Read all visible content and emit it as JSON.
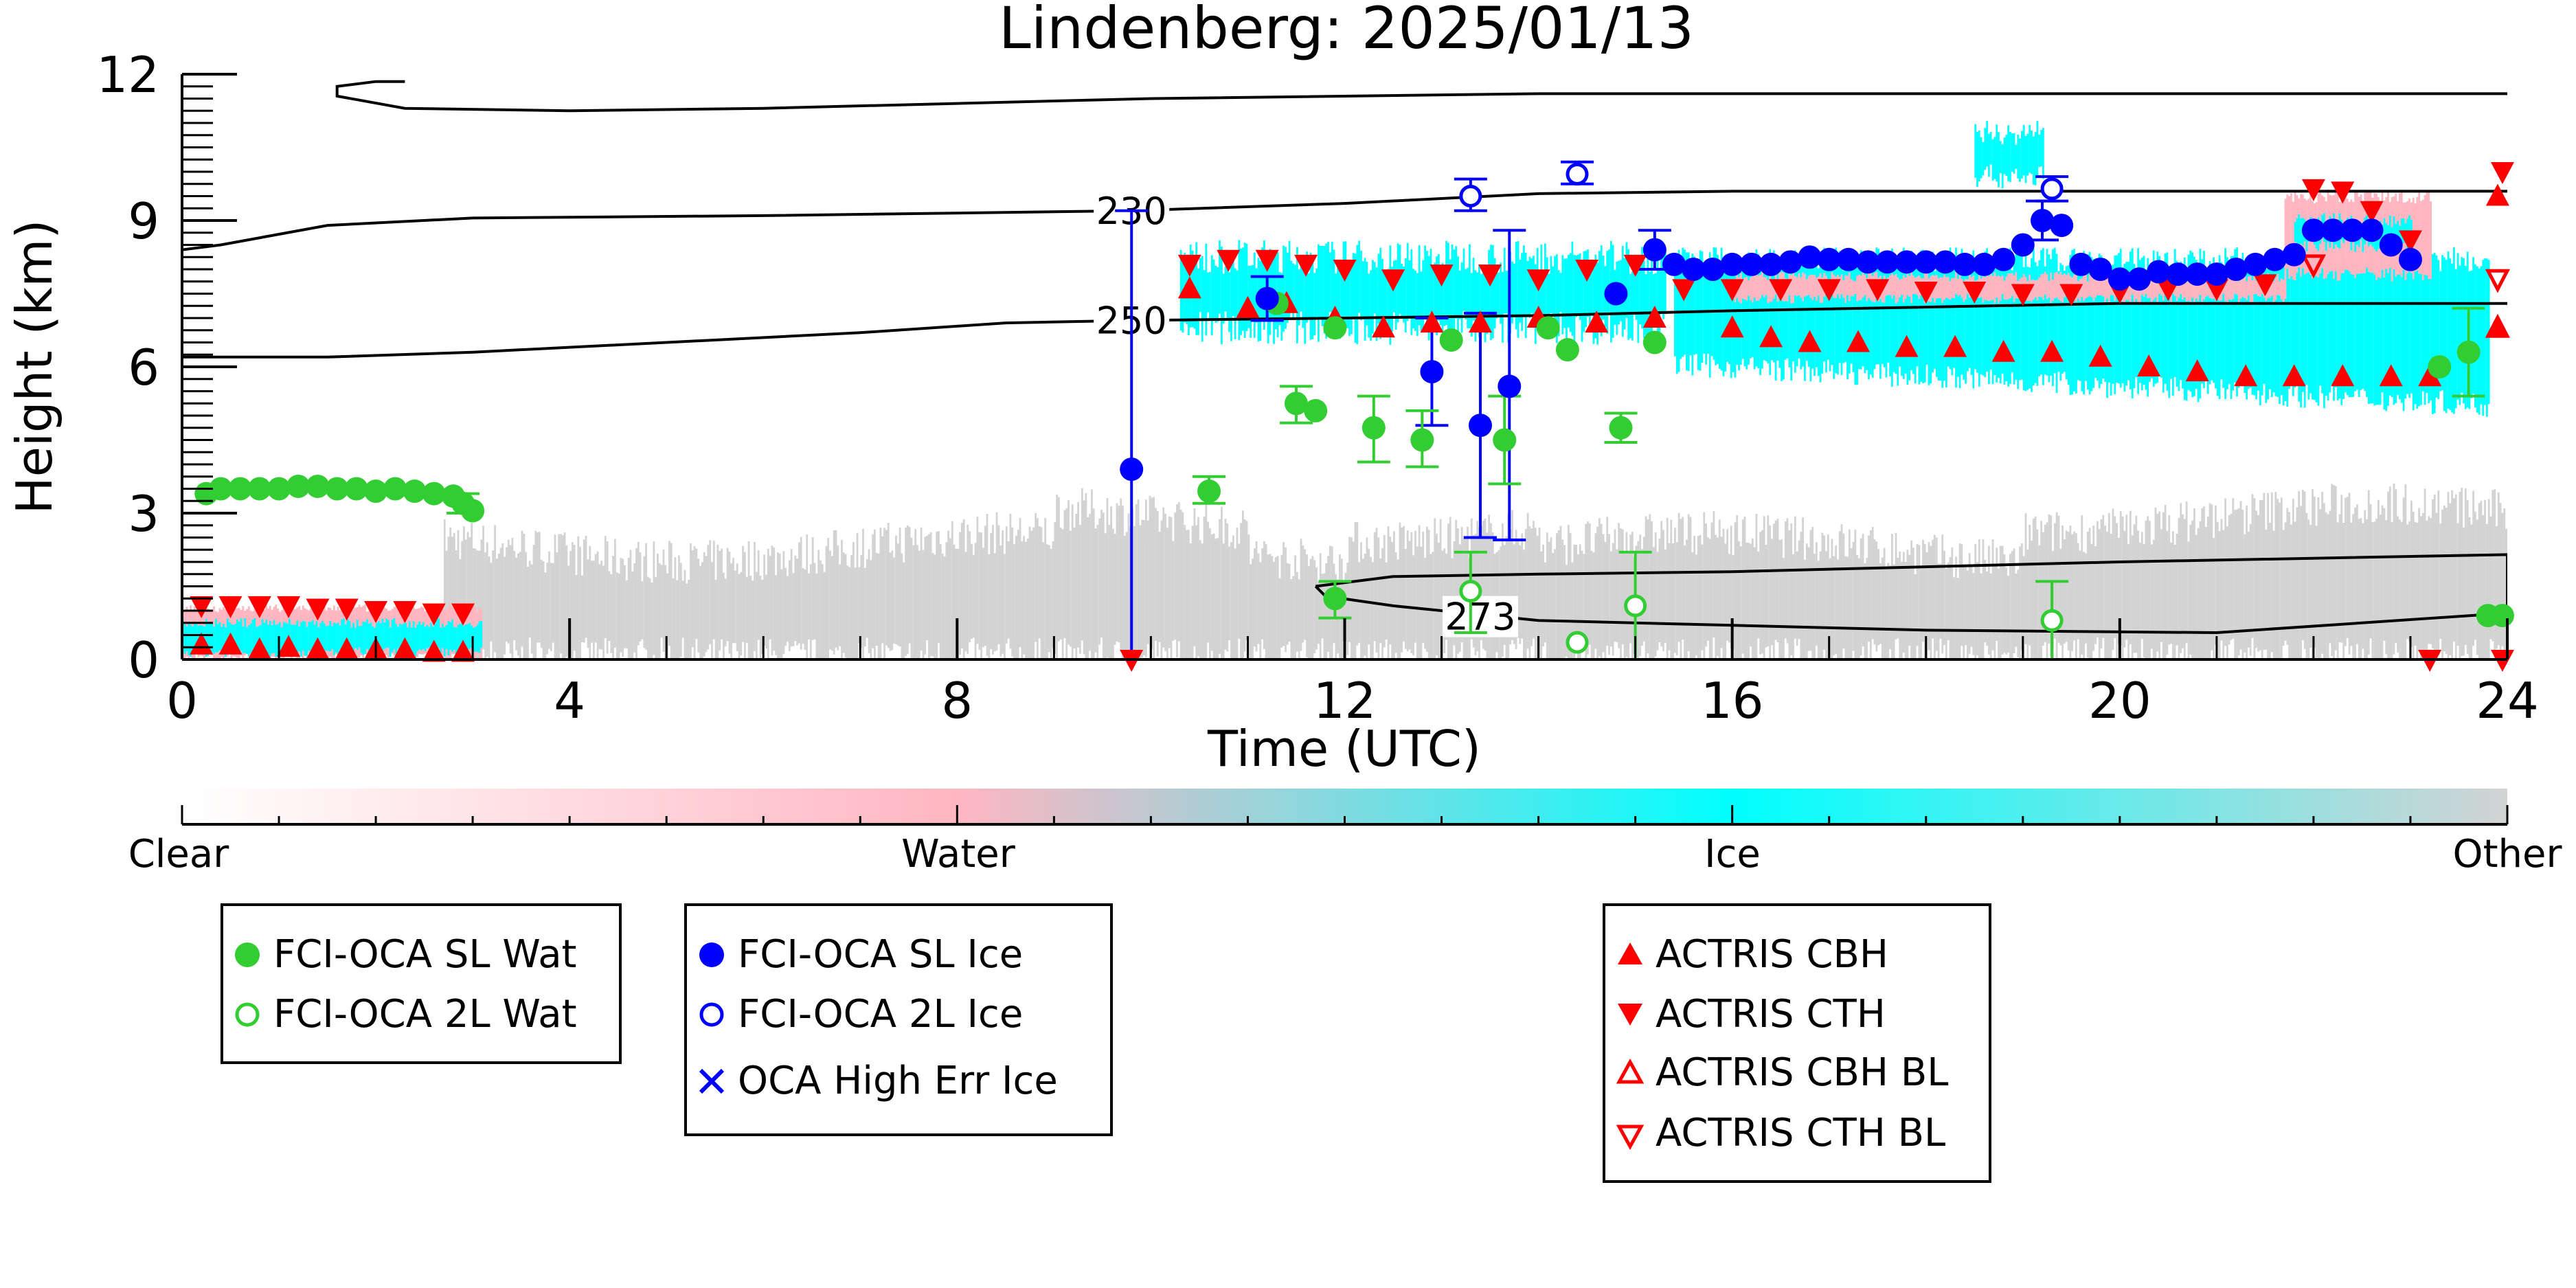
{
  "chart_data": {
    "type": "scatter",
    "title": "Lindenberg: 2025/01/13",
    "xlabel": "Time (UTC)",
    "ylabel": "Height (km)",
    "xlim": [
      0,
      24
    ],
    "ylim": [
      0,
      12
    ],
    "x_ticks": [
      "0",
      "4",
      "8",
      "12",
      "16",
      "20",
      "24"
    ],
    "y_ticks": [
      "0",
      "3",
      "6",
      "9",
      "12"
    ],
    "colorbar": {
      "labels": [
        "Clear",
        "Water",
        "Ice",
        "Other"
      ],
      "colors": {
        "clear": "#ffffff",
        "water": "#ffb6c1",
        "ice": "#00ffff",
        "other": "#d3d3d3"
      }
    },
    "contours": [
      {
        "label": "230",
        "points": [
          [
            0,
            8.4
          ],
          [
            0.4,
            8.5
          ],
          [
            1.5,
            8.9
          ],
          [
            3,
            9.05
          ],
          [
            6,
            9.1
          ],
          [
            9.8,
            9.2
          ],
          [
            12,
            9.35
          ],
          [
            14,
            9.55
          ],
          [
            16,
            9.6
          ],
          [
            20,
            9.6
          ],
          [
            24,
            9.6
          ]
        ]
      },
      {
        "label": "250",
        "points": [
          [
            0,
            6.2
          ],
          [
            1.5,
            6.2
          ],
          [
            3,
            6.3
          ],
          [
            5,
            6.5
          ],
          [
            7,
            6.7
          ],
          [
            8.5,
            6.9
          ],
          [
            9.8,
            6.95
          ],
          [
            12,
            7.0
          ],
          [
            14,
            7.05
          ],
          [
            16,
            7.15
          ],
          [
            20,
            7.3
          ],
          [
            24,
            7.3
          ]
        ]
      },
      {
        "label": "273",
        "points": [
          [
            11.7,
            1.5
          ],
          [
            12.5,
            1.7
          ],
          [
            14,
            1.75
          ],
          [
            16,
            1.8
          ],
          [
            18,
            1.9
          ],
          [
            20,
            2.0
          ],
          [
            24,
            2.15
          ],
          [
            24,
            0.95
          ],
          [
            21,
            0.55
          ],
          [
            18,
            0.6
          ],
          [
            16,
            0.7
          ],
          [
            14,
            0.8
          ],
          [
            12.5,
            1.1
          ],
          [
            11.8,
            1.3
          ],
          [
            11.7,
            1.5
          ]
        ]
      },
      {
        "label": "",
        "points": [
          [
            2.3,
            11.85
          ],
          [
            2.0,
            11.85
          ],
          [
            1.6,
            11.75
          ],
          [
            1.6,
            11.55
          ],
          [
            2.3,
            11.3
          ],
          [
            4,
            11.25
          ],
          [
            6,
            11.3
          ],
          [
            8,
            11.4
          ],
          [
            10,
            11.5
          ],
          [
            14,
            11.6
          ],
          [
            20,
            11.6
          ],
          [
            24,
            11.6
          ]
        ]
      }
    ],
    "series": [
      {
        "name": "FCI-OCA SL Wat",
        "marker": "filled-circle",
        "color": "#32cd32",
        "points": [
          [
            0.25,
            3.4
          ],
          [
            0.4,
            3.5
          ],
          [
            0.6,
            3.5
          ],
          [
            0.8,
            3.5
          ],
          [
            1.0,
            3.5
          ],
          [
            1.2,
            3.55
          ],
          [
            1.4,
            3.55
          ],
          [
            1.6,
            3.5
          ],
          [
            1.8,
            3.5
          ],
          [
            2.0,
            3.45
          ],
          [
            2.2,
            3.5
          ],
          [
            2.4,
            3.45
          ],
          [
            2.6,
            3.4
          ],
          [
            2.8,
            3.35
          ],
          [
            2.9,
            3.2
          ],
          [
            3.0,
            3.05
          ],
          [
            10.6,
            3.45
          ],
          [
            11.3,
            7.3
          ],
          [
            11.5,
            5.25
          ],
          [
            11.7,
            5.1
          ],
          [
            11.9,
            6.8
          ],
          [
            11.9,
            1.25
          ],
          [
            12.3,
            4.75
          ],
          [
            12.8,
            4.5
          ],
          [
            13.1,
            6.55
          ],
          [
            13.65,
            4.5
          ],
          [
            14.1,
            6.8
          ],
          [
            14.3,
            6.35
          ],
          [
            14.85,
            4.75
          ],
          [
            15.2,
            6.5
          ],
          [
            23.3,
            6.0
          ],
          [
            23.6,
            6.3
          ],
          [
            23.8,
            0.9
          ],
          [
            23.95,
            0.9
          ]
        ]
      },
      {
        "name": "FCI-OCA 2L Wat",
        "marker": "open-circle",
        "color": "#32cd32",
        "points": [
          [
            13.3,
            1.4
          ],
          [
            14.4,
            0.35
          ],
          [
            15.0,
            1.1
          ],
          [
            19.3,
            0.8
          ]
        ]
      },
      {
        "name": "FCI-OCA SL Ice",
        "marker": "filled-circle",
        "color": "#0000ff",
        "points": [
          [
            9.8,
            3.9
          ],
          [
            11.2,
            7.4
          ],
          [
            12.9,
            5.9
          ],
          [
            13.4,
            4.8
          ],
          [
            13.7,
            5.6
          ],
          [
            14.8,
            7.5
          ],
          [
            15.2,
            8.4
          ],
          [
            15.4,
            8.1
          ],
          [
            15.6,
            8.0
          ],
          [
            15.8,
            8.0
          ],
          [
            16.0,
            8.1
          ],
          [
            16.2,
            8.1
          ],
          [
            16.4,
            8.1
          ],
          [
            16.6,
            8.15
          ],
          [
            16.8,
            8.25
          ],
          [
            17.0,
            8.2
          ],
          [
            17.2,
            8.2
          ],
          [
            17.4,
            8.15
          ],
          [
            17.6,
            8.15
          ],
          [
            17.8,
            8.15
          ],
          [
            18.0,
            8.15
          ],
          [
            18.2,
            8.15
          ],
          [
            18.4,
            8.1
          ],
          [
            18.6,
            8.1
          ],
          [
            18.8,
            8.2
          ],
          [
            19.0,
            8.5
          ],
          [
            19.2,
            9.0
          ],
          [
            19.4,
            8.9
          ],
          [
            19.6,
            8.1
          ],
          [
            19.8,
            8.0
          ],
          [
            20.0,
            7.8
          ],
          [
            20.2,
            7.8
          ],
          [
            20.4,
            7.95
          ],
          [
            20.6,
            7.9
          ],
          [
            20.8,
            7.9
          ],
          [
            21.0,
            7.9
          ],
          [
            21.2,
            8.0
          ],
          [
            21.4,
            8.1
          ],
          [
            21.6,
            8.2
          ],
          [
            21.8,
            8.3
          ],
          [
            22.0,
            8.8
          ],
          [
            22.2,
            8.8
          ],
          [
            22.4,
            8.8
          ],
          [
            22.6,
            8.8
          ],
          [
            22.8,
            8.5
          ],
          [
            23.0,
            8.2
          ]
        ]
      },
      {
        "name": "FCI-OCA 2L Ice",
        "marker": "open-circle",
        "color": "#0000ff",
        "points": [
          [
            13.3,
            9.5
          ],
          [
            14.4,
            9.95
          ],
          [
            19.3,
            9.65
          ]
        ]
      },
      {
        "name": "OCA High Err Ice",
        "marker": "x",
        "color": "#0000ff",
        "points": []
      },
      {
        "name": "ACTRIS CBH",
        "marker": "triangle-up",
        "color": "#ff0000",
        "points": [
          [
            0.2,
            0.3
          ],
          [
            0.5,
            0.3
          ],
          [
            0.8,
            0.2
          ],
          [
            1.1,
            0.25
          ],
          [
            1.4,
            0.2
          ],
          [
            1.7,
            0.2
          ],
          [
            2.0,
            0.2
          ],
          [
            2.3,
            0.2
          ],
          [
            2.6,
            0.15
          ],
          [
            2.9,
            0.15
          ],
          [
            10.4,
            7.6
          ],
          [
            11.0,
            7.2
          ],
          [
            11.4,
            7.3
          ],
          [
            11.9,
            7.0
          ],
          [
            12.4,
            6.8
          ],
          [
            12.9,
            6.9
          ],
          [
            13.4,
            6.9
          ],
          [
            14.0,
            7.0
          ],
          [
            14.6,
            6.9
          ],
          [
            15.2,
            7.0
          ],
          [
            16.0,
            6.8
          ],
          [
            16.4,
            6.6
          ],
          [
            16.8,
            6.5
          ],
          [
            17.3,
            6.5
          ],
          [
            17.8,
            6.4
          ],
          [
            18.3,
            6.4
          ],
          [
            18.8,
            6.3
          ],
          [
            19.3,
            6.3
          ],
          [
            19.8,
            6.2
          ],
          [
            20.3,
            6.0
          ],
          [
            20.8,
            5.9
          ],
          [
            21.3,
            5.8
          ],
          [
            21.8,
            5.8
          ],
          [
            22.3,
            5.8
          ],
          [
            22.8,
            5.8
          ],
          [
            23.2,
            5.8
          ],
          [
            23.9,
            9.5
          ],
          [
            23.9,
            6.8
          ]
        ]
      },
      {
        "name": "ACTRIS CTH",
        "marker": "triangle-down",
        "color": "#ff0000",
        "points": [
          [
            0.2,
            1.1
          ],
          [
            0.5,
            1.1
          ],
          [
            0.8,
            1.1
          ],
          [
            1.1,
            1.1
          ],
          [
            1.4,
            1.05
          ],
          [
            1.7,
            1.05
          ],
          [
            2.0,
            1.0
          ],
          [
            2.3,
            1.0
          ],
          [
            2.6,
            0.95
          ],
          [
            2.9,
            0.95
          ],
          [
            9.8,
            0.0
          ],
          [
            10.4,
            8.1
          ],
          [
            10.8,
            8.2
          ],
          [
            11.2,
            8.2
          ],
          [
            11.6,
            8.1
          ],
          [
            12.0,
            8.0
          ],
          [
            12.5,
            7.8
          ],
          [
            13.0,
            7.9
          ],
          [
            13.5,
            7.9
          ],
          [
            14.0,
            7.8
          ],
          [
            14.5,
            8.0
          ],
          [
            15.0,
            8.1
          ],
          [
            15.5,
            7.6
          ],
          [
            16.0,
            7.6
          ],
          [
            16.5,
            7.6
          ],
          [
            17.0,
            7.6
          ],
          [
            17.5,
            7.6
          ],
          [
            18.0,
            7.55
          ],
          [
            18.5,
            7.55
          ],
          [
            19.0,
            7.5
          ],
          [
            19.5,
            7.5
          ],
          [
            20.0,
            7.55
          ],
          [
            20.5,
            7.6
          ],
          [
            21.0,
            7.6
          ],
          [
            21.5,
            7.7
          ],
          [
            22.0,
            9.65
          ],
          [
            22.3,
            9.6
          ],
          [
            22.6,
            9.2
          ],
          [
            23.0,
            8.6
          ],
          [
            23.95,
            10.0
          ],
          [
            23.95,
            0.0
          ],
          [
            23.2,
            0.0
          ]
        ]
      },
      {
        "name": "ACTRIS CBH BL",
        "marker": "open-triangle-up",
        "color": "#ff0000",
        "points": [
          [
            23.9,
            6.8
          ]
        ]
      },
      {
        "name": "ACTRIS CTH BL",
        "marker": "open-triangle-down",
        "color": "#ff0000",
        "points": [
          [
            23.9,
            7.8
          ],
          [
            22.0,
            8.1
          ]
        ]
      }
    ],
    "errorbars": [
      {
        "x": 9.8,
        "y0": 0.0,
        "y1": 9.2,
        "color": "#0000ff"
      },
      {
        "x": 11.2,
        "y0": 6.95,
        "y1": 7.85,
        "color": "#0000ff"
      },
      {
        "x": 12.9,
        "y0": 4.8,
        "y1": 7.0,
        "color": "#0000ff"
      },
      {
        "x": 13.4,
        "y0": 2.5,
        "y1": 7.1,
        "color": "#0000ff"
      },
      {
        "x": 13.7,
        "y0": 2.45,
        "y1": 8.8,
        "color": "#0000ff"
      },
      {
        "x": 15.2,
        "y0": 8.0,
        "y1": 8.8,
        "color": "#0000ff"
      },
      {
        "x": 19.2,
        "y0": 8.6,
        "y1": 9.4,
        "color": "#0000ff"
      },
      {
        "x": 13.3,
        "y0": 9.2,
        "y1": 9.85,
        "color": "#0000ff"
      },
      {
        "x": 14.4,
        "y0": 9.75,
        "y1": 10.2,
        "color": "#0000ff"
      },
      {
        "x": 19.3,
        "y0": 9.4,
        "y1": 9.9,
        "color": "#0000ff"
      },
      {
        "x": 10.6,
        "y0": 3.2,
        "y1": 3.75,
        "color": "#32cd32"
      },
      {
        "x": 11.5,
        "y0": 4.85,
        "y1": 5.6,
        "color": "#32cd32"
      },
      {
        "x": 12.3,
        "y0": 4.05,
        "y1": 5.4,
        "color": "#32cd32"
      },
      {
        "x": 12.8,
        "y0": 3.95,
        "y1": 5.1,
        "color": "#32cd32"
      },
      {
        "x": 13.65,
        "y0": 3.6,
        "y1": 5.4,
        "color": "#32cd32"
      },
      {
        "x": 14.85,
        "y0": 4.45,
        "y1": 5.05,
        "color": "#32cd32"
      },
      {
        "x": 11.9,
        "y0": 0.85,
        "y1": 1.6,
        "color": "#32cd32"
      },
      {
        "x": 13.3,
        "y0": 0.55,
        "y1": 2.2,
        "color": "#32cd32"
      },
      {
        "x": 15.0,
        "y0": 0.0,
        "y1": 2.2,
        "color": "#32cd32"
      },
      {
        "x": 19.3,
        "y0": 0.0,
        "y1": 1.6,
        "color": "#32cd32"
      },
      {
        "x": 23.6,
        "y0": 5.4,
        "y1": 7.2,
        "color": "#32cd32"
      },
      {
        "x": 2.9,
        "y0": 3.0,
        "y1": 3.4,
        "color": "#32cd32"
      }
    ],
    "grid": false,
    "legend_placement": "bottom"
  }
}
